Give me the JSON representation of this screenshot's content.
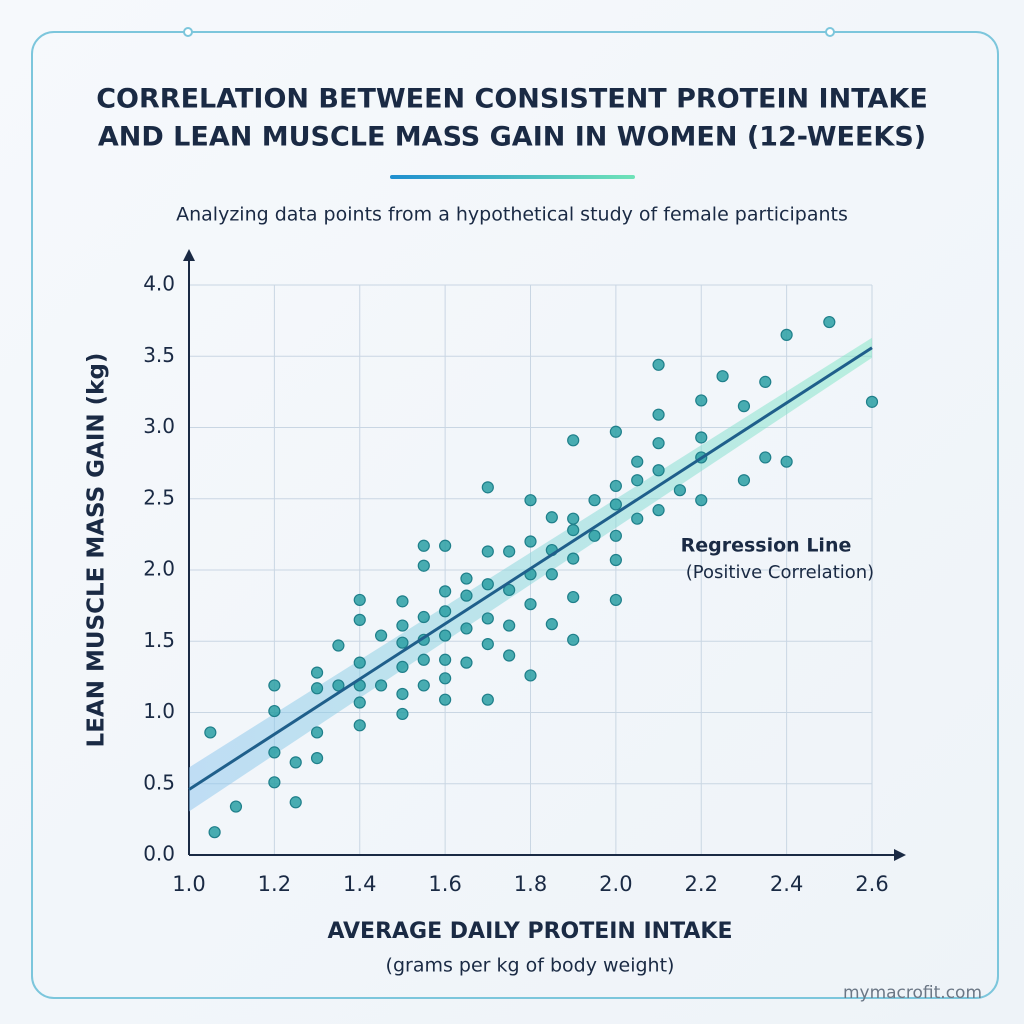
{
  "chart_data": {
    "type": "scatter",
    "title": [
      "CORRELATION BETWEEN CONSISTENT PROTEIN INTAKE",
      "AND LEAN MUSCLE MASS GAIN IN WOMEN (12-WEEKS)"
    ],
    "subtitle": "Analyzing data points from a hypothetical study of female participants",
    "xlabel": "AVERAGE DAILY PROTEIN INTAKE",
    "xlabel_note": "(grams per kg of body weight)",
    "ylabel": "LEAN MUSCLE MASS GAIN (kg)",
    "color": "#2a9fa3",
    "x": [
      1.05,
      1.06,
      1.11,
      1.2,
      1.2,
      1.2,
      1.2,
      1.25,
      1.25,
      1.3,
      1.3,
      1.3,
      1.3,
      1.35,
      1.35,
      1.4,
      1.4,
      1.4,
      1.4,
      1.4,
      1.4,
      1.45,
      1.45,
      1.5,
      1.5,
      1.5,
      1.5,
      1.5,
      1.5,
      1.55,
      1.55,
      1.55,
      1.55,
      1.55,
      1.55,
      1.6,
      1.6,
      1.6,
      1.6,
      1.6,
      1.6,
      1.6,
      1.65,
      1.65,
      1.65,
      1.65,
      1.7,
      1.7,
      1.7,
      1.7,
      1.7,
      1.7,
      1.75,
      1.75,
      1.75,
      1.75,
      1.8,
      1.8,
      1.8,
      1.8,
      1.8,
      1.85,
      1.85,
      1.85,
      1.85,
      1.9,
      1.9,
      1.9,
      1.9,
      1.9,
      1.9,
      1.95,
      1.95,
      2.0,
      2.0,
      2.0,
      2.0,
      2.0,
      2.0,
      2.05,
      2.05,
      2.05,
      2.1,
      2.1,
      2.1,
      2.1,
      2.1,
      2.15,
      2.2,
      2.2,
      2.2,
      2.2,
      2.25,
      2.3,
      2.3,
      2.35,
      2.35,
      2.4,
      2.4,
      2.5,
      2.6
    ],
    "y": [
      0.86,
      0.16,
      0.34,
      1.19,
      1.01,
      0.72,
      0.51,
      0.65,
      0.37,
      1.28,
      1.17,
      0.86,
      0.68,
      1.47,
      1.19,
      1.79,
      1.65,
      1.35,
      1.19,
      1.07,
      0.91,
      1.54,
      1.19,
      1.78,
      1.61,
      1.49,
      1.32,
      1.13,
      0.99,
      2.17,
      2.03,
      1.67,
      1.51,
      1.37,
      1.19,
      2.17,
      1.85,
      1.71,
      1.54,
      1.37,
      1.24,
      1.09,
      1.94,
      1.82,
      1.59,
      1.35,
      2.58,
      2.13,
      1.9,
      1.66,
      1.48,
      1.09,
      2.13,
      1.86,
      1.61,
      1.4,
      2.49,
      2.2,
      1.97,
      1.76,
      1.26,
      2.37,
      2.14,
      1.97,
      1.62,
      2.91,
      2.36,
      2.28,
      2.08,
      1.81,
      1.51,
      2.49,
      2.24,
      2.97,
      2.59,
      2.46,
      2.24,
      2.07,
      1.79,
      2.76,
      2.63,
      2.36,
      3.44,
      3.09,
      2.89,
      2.7,
      2.42,
      2.56,
      3.19,
      2.93,
      2.79,
      2.49,
      3.36,
      3.15,
      2.63,
      3.32,
      2.79,
      3.65,
      2.76,
      3.74,
      3.18
    ],
    "regression": {
      "label": "Regression Line",
      "note": "(Positive Correlation)",
      "color": "#1f5f8b",
      "x": [
        1.0,
        2.6
      ],
      "y": [
        0.46,
        3.56
      ]
    },
    "xlim": [
      1.0,
      2.6
    ],
    "ylim": [
      0,
      4
    ],
    "xticks": [
      {
        "value": 1,
        "label": "1.0"
      },
      1.2,
      1.4,
      1.6,
      1.8,
      {
        "value": 2,
        "label": "2.0"
      },
      2.2,
      2.4,
      2.6
    ],
    "yticks": [
      {
        "value": 0,
        "label": "0.0"
      },
      0.5,
      {
        "value": 1,
        "label": "1.0"
      },
      1.5,
      {
        "value": 2,
        "label": "2.0"
      },
      2.5,
      {
        "value": 3,
        "label": "3.0"
      },
      3.5,
      {
        "value": 4,
        "label": "4.0"
      }
    ],
    "grid": true
  },
  "footer": "mymacrofit.com"
}
